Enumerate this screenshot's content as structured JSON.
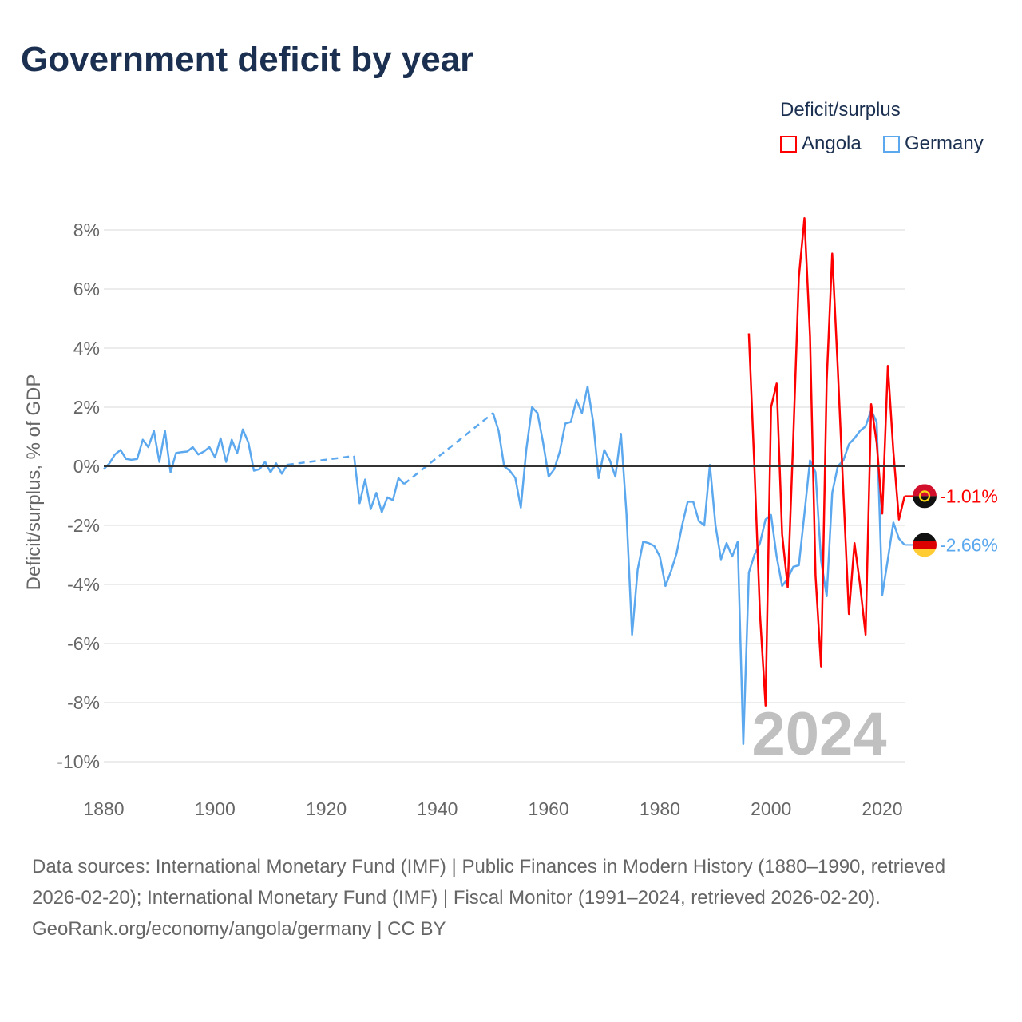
{
  "title": "Government deficit by year",
  "legend": {
    "title": "Deficit/surplus",
    "items": [
      {
        "name": "Angola",
        "color": "#ff0000"
      },
      {
        "name": "Germany",
        "color": "#5ba8ee"
      }
    ]
  },
  "footer": {
    "sources": "Data sources: International Monetary Fund (IMF) | Public Finances in Modern History (1880–1990, retrieved 2026-02-20); International Monetary Fund (IMF) | Fiscal Monitor (1991–2024, retrieved 2026-02-20).",
    "credit": "GeoRank.org/economy/angola/germany | CC BY"
  },
  "chart_data": {
    "type": "line",
    "title": "Government deficit by year",
    "xlabel": "",
    "ylabel": "Deficit/surplus, % of GDP",
    "xlim": [
      1880,
      2024
    ],
    "ylim": [
      -10,
      8
    ],
    "x_ticks": [
      "1880",
      "1900",
      "1920",
      "1940",
      "1960",
      "1980",
      "2000",
      "2020"
    ],
    "y_ticks": [
      "8%",
      "6%",
      "4%",
      "2%",
      "0%",
      "-2%",
      "-4%",
      "-6%",
      "-8%",
      "-10%"
    ],
    "year_label": "2024",
    "series": [
      {
        "name": "Angola",
        "color": "#ff0000",
        "end_label": "-1.01%",
        "points": [
          [
            1996,
            4.5
          ],
          [
            1997,
            0.0
          ],
          [
            1998,
            -5.0
          ],
          [
            1999,
            -8.1
          ],
          [
            2000,
            2.0
          ],
          [
            2001,
            2.8
          ],
          [
            2002,
            -2.3
          ],
          [
            2003,
            -4.1
          ],
          [
            2004,
            1.0
          ],
          [
            2005,
            6.4
          ],
          [
            2006,
            8.4
          ],
          [
            2007,
            4.4
          ],
          [
            2008,
            -3.7
          ],
          [
            2009,
            -6.8
          ],
          [
            2010,
            2.9
          ],
          [
            2011,
            7.2
          ],
          [
            2012,
            3.3
          ],
          [
            2013,
            -0.9
          ],
          [
            2014,
            -5.0
          ],
          [
            2015,
            -2.6
          ],
          [
            2016,
            -4.0
          ],
          [
            2017,
            -5.7
          ],
          [
            2018,
            2.1
          ],
          [
            2019,
            0.8
          ],
          [
            2020,
            -1.6
          ],
          [
            2021,
            3.4
          ],
          [
            2022,
            0.5
          ],
          [
            2023,
            -1.8
          ],
          [
            2024,
            -1.01
          ]
        ]
      },
      {
        "name": "Germany",
        "color": "#5ba8ee",
        "end_label": "-2.66%",
        "points": [
          [
            1880,
            -0.1
          ],
          [
            1881,
            0.1
          ],
          [
            1882,
            0.4
          ],
          [
            1883,
            0.55
          ],
          [
            1884,
            0.25
          ],
          [
            1885,
            0.22
          ],
          [
            1886,
            0.25
          ],
          [
            1887,
            0.9
          ],
          [
            1888,
            0.65
          ],
          [
            1889,
            1.2
          ],
          [
            1890,
            0.15
          ],
          [
            1891,
            1.2
          ],
          [
            1892,
            -0.2
          ],
          [
            1893,
            0.45
          ],
          [
            1894,
            0.48
          ],
          [
            1895,
            0.5
          ],
          [
            1896,
            0.65
          ],
          [
            1897,
            0.4
          ],
          [
            1898,
            0.5
          ],
          [
            1899,
            0.65
          ],
          [
            1900,
            0.3
          ],
          [
            1901,
            0.95
          ],
          [
            1902,
            0.15
          ],
          [
            1903,
            0.9
          ],
          [
            1904,
            0.45
          ],
          [
            1905,
            1.25
          ],
          [
            1906,
            0.8
          ],
          [
            1907,
            -0.15
          ],
          [
            1908,
            -0.1
          ],
          [
            1909,
            0.15
          ],
          [
            1910,
            -0.2
          ],
          [
            1911,
            0.1
          ],
          [
            1912,
            -0.25
          ],
          [
            1913,
            0.05
          ],
          [
            1925,
            0.35
          ],
          [
            1926,
            -1.25
          ],
          [
            1927,
            -0.45
          ],
          [
            1928,
            -1.45
          ],
          [
            1929,
            -0.9
          ],
          [
            1930,
            -1.55
          ],
          [
            1931,
            -1.05
          ],
          [
            1932,
            -1.15
          ],
          [
            1933,
            -0.4
          ],
          [
            1934,
            -0.6
          ],
          [
            1950,
            1.8
          ],
          [
            1951,
            1.2
          ],
          [
            1952,
            0.0
          ],
          [
            1953,
            -0.15
          ],
          [
            1954,
            -0.4
          ],
          [
            1955,
            -1.4
          ],
          [
            1956,
            0.6
          ],
          [
            1957,
            2.0
          ],
          [
            1958,
            1.8
          ],
          [
            1959,
            0.8
          ],
          [
            1960,
            -0.35
          ],
          [
            1961,
            -0.1
          ],
          [
            1962,
            0.5
          ],
          [
            1963,
            1.45
          ],
          [
            1964,
            1.5
          ],
          [
            1965,
            2.25
          ],
          [
            1966,
            1.8
          ],
          [
            1967,
            2.7
          ],
          [
            1968,
            1.5
          ],
          [
            1969,
            -0.4
          ],
          [
            1970,
            0.55
          ],
          [
            1971,
            0.2
          ],
          [
            1972,
            -0.35
          ],
          [
            1973,
            1.1
          ],
          [
            1974,
            -1.6
          ],
          [
            1975,
            -5.7
          ],
          [
            1976,
            -3.5
          ],
          [
            1977,
            -2.55
          ],
          [
            1978,
            -2.6
          ],
          [
            1979,
            -2.7
          ],
          [
            1980,
            -3.05
          ],
          [
            1981,
            -4.05
          ],
          [
            1982,
            -3.55
          ],
          [
            1983,
            -2.95
          ],
          [
            1984,
            -2.0
          ],
          [
            1985,
            -1.2
          ],
          [
            1986,
            -1.2
          ],
          [
            1987,
            -1.85
          ],
          [
            1988,
            -2.0
          ],
          [
            1989,
            0.05
          ],
          [
            1990,
            -2.0
          ],
          [
            1991,
            -3.15
          ],
          [
            1992,
            -2.6
          ],
          [
            1993,
            -3.05
          ],
          [
            1994,
            -2.55
          ],
          [
            1995,
            -9.4
          ],
          [
            1996,
            -3.6
          ],
          [
            1997,
            -3.0
          ],
          [
            1998,
            -2.6
          ],
          [
            1999,
            -1.8
          ],
          [
            2000,
            -1.65
          ],
          [
            2001,
            -3.05
          ],
          [
            2002,
            -4.05
          ],
          [
            2003,
            -3.8
          ],
          [
            2004,
            -3.4
          ],
          [
            2005,
            -3.35
          ],
          [
            2006,
            -1.6
          ],
          [
            2007,
            0.2
          ],
          [
            2008,
            -0.2
          ],
          [
            2009,
            -3.2
          ],
          [
            2010,
            -4.4
          ],
          [
            2011,
            -0.9
          ],
          [
            2012,
            0.0
          ],
          [
            2013,
            0.2
          ],
          [
            2014,
            0.75
          ],
          [
            2015,
            0.95
          ],
          [
            2016,
            1.2
          ],
          [
            2017,
            1.35
          ],
          [
            2018,
            1.9
          ],
          [
            2019,
            1.5
          ],
          [
            2020,
            -4.35
          ],
          [
            2021,
            -3.15
          ],
          [
            2022,
            -1.9
          ],
          [
            2023,
            -2.45
          ],
          [
            2024,
            -2.66
          ]
        ]
      }
    ]
  }
}
